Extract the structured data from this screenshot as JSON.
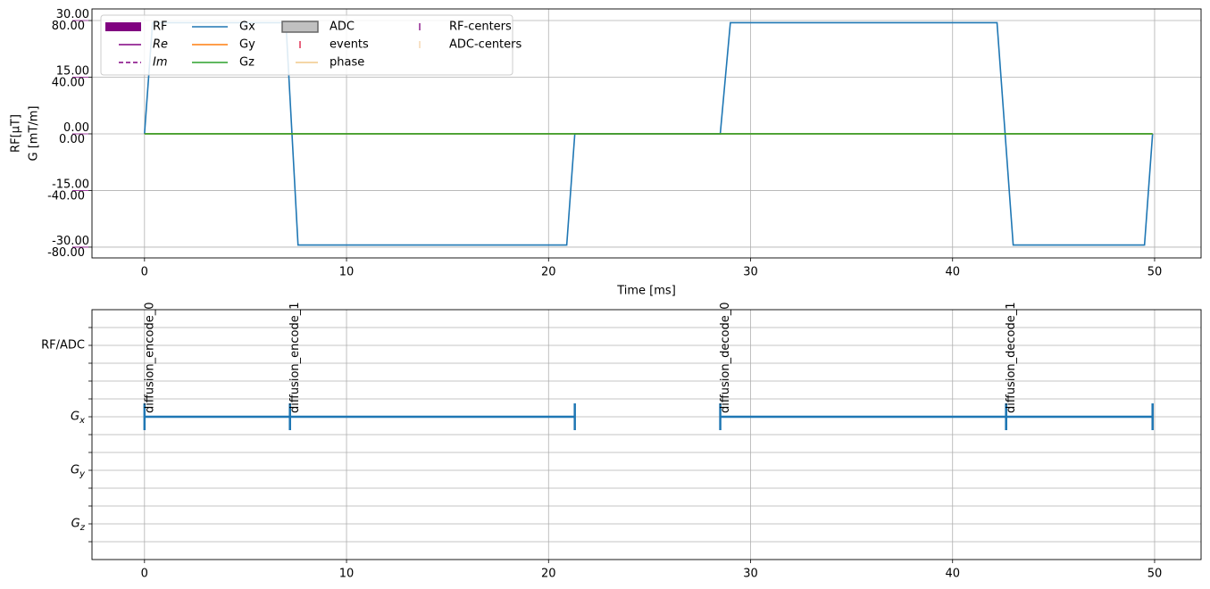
{
  "chart_data": [
    {
      "type": "line",
      "xlabel": "Time [ms]",
      "ylabel": "G [mT/m]",
      "y2label": "RF[μT]",
      "y2color": "#800080",
      "xlim": [
        -2.6,
        52.3
      ],
      "xticks": [
        0,
        10,
        20,
        30,
        40,
        50
      ],
      "ylim": [
        -87.6,
        88.2
      ],
      "yticks": [
        {
          "value": -80,
          "label": "-80.00"
        },
        {
          "value": -40,
          "label": "-40.00"
        },
        {
          "value": 0,
          "label": "0.00"
        },
        {
          "value": 40,
          "label": "40.00"
        },
        {
          "value": 80,
          "label": "80.00"
        }
      ],
      "y2lim": [
        -32.85,
        33.08
      ],
      "y2ticks": [
        {
          "value": -30,
          "label": "-30.00"
        },
        {
          "value": -15,
          "label": "-15.00"
        },
        {
          "value": 0,
          "label": "0.00"
        },
        {
          "value": 15,
          "label": "15.00"
        },
        {
          "value": 30,
          "label": "30.00"
        }
      ],
      "grid": true,
      "legend": "upper left",
      "legend_entries": [
        {
          "name": "RF",
          "color": "#800080",
          "kind": "patch"
        },
        {
          "name": "Re",
          "color": "#800080",
          "kind": "line",
          "small": true
        },
        {
          "name": "Im",
          "color": "#800080",
          "kind": "dashed",
          "small": true
        },
        {
          "name": "ADC",
          "color": "#c0c0c0",
          "kind": "patch-outline"
        },
        {
          "name": "events",
          "color": "#dc143c",
          "kind": "tick",
          "small": true
        },
        {
          "name": "phase",
          "color": "#f0c88a",
          "kind": "line",
          "small": true
        },
        {
          "name": "RF-centers",
          "color": "#800080",
          "kind": "tick"
        },
        {
          "name": "ADC-centers",
          "color": "#f5d3a8",
          "kind": "tick"
        }
      ],
      "series": [
        {
          "name": "Gx",
          "color": "#1f77b4",
          "x": [
            0,
            0.4,
            7.0,
            7.6,
            20.9,
            21.3,
            28.5,
            29.0,
            42.2,
            43.0,
            49.5,
            49.9
          ],
          "values": [
            0,
            78.5,
            78.5,
            -78.5,
            -78.5,
            0,
            0,
            78.5,
            78.5,
            -78.5,
            -78.5,
            0
          ]
        },
        {
          "name": "Gy",
          "color": "#ff7f0e",
          "x": [
            0,
            49.9
          ],
          "values": [
            0,
            0
          ]
        },
        {
          "name": "Gz",
          "color": "#2ca02c",
          "x": [
            0,
            49.9
          ],
          "values": [
            0,
            0
          ]
        }
      ]
    },
    {
      "type": "timeline",
      "xlim": [
        -2.6,
        52.3
      ],
      "xticks": [
        0,
        10,
        20,
        30,
        40,
        50
      ],
      "ylim": [
        0,
        14
      ],
      "yticks": [
        {
          "value": 2,
          "label": "Gz"
        },
        {
          "value": 5,
          "label": "Gy"
        },
        {
          "value": 8,
          "label": "Gx"
        },
        {
          "value": 12,
          "label": "RF/ADC"
        }
      ],
      "minor_yticks": [
        1,
        3,
        4,
        6,
        7,
        9,
        10,
        11,
        13
      ],
      "grid": true,
      "intervals": [
        {
          "name": "diffusion_encode_0",
          "y": 8,
          "start": 0,
          "end": 7.2,
          "color": "#1f77b4"
        },
        {
          "name": "diffusion_encode_1",
          "y": 8,
          "start": 7.2,
          "end": 21.3,
          "color": "#1f77b4"
        },
        {
          "name": "diffusion_decode_0",
          "y": 8,
          "start": 28.5,
          "end": 42.65,
          "color": "#1f77b4"
        },
        {
          "name": "diffusion_decode_1",
          "y": 8,
          "start": 42.65,
          "end": 49.9,
          "color": "#1f77b4"
        }
      ]
    }
  ]
}
